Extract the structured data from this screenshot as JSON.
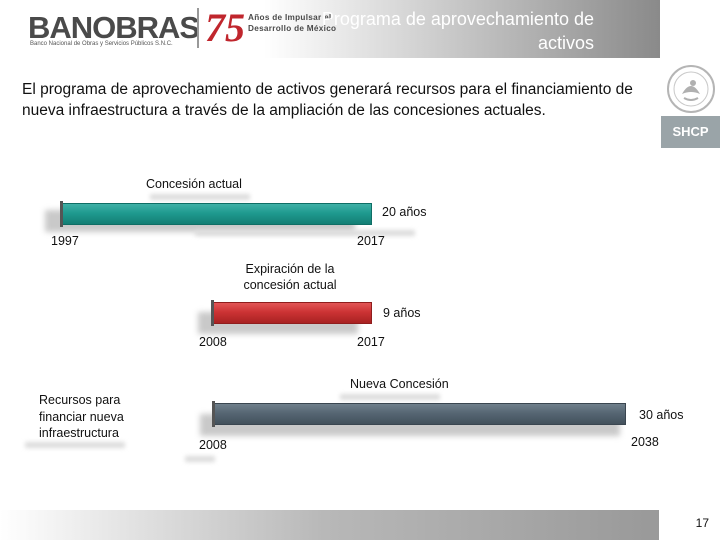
{
  "header": {
    "brand": "BANOBRAS",
    "brand_sub": "Banco Nacional de Obras y Servicios Públicos S.N.C.",
    "anniversary_number": "75",
    "anniversary_text": "Años de Impulsar el Desarrollo de México",
    "title": "Programa de aprovechamiento de activos"
  },
  "right_rail": {
    "agency": "SHCP"
  },
  "intro": "El programa de aprovechamiento de activos generará recursos para el financiamiento de nueva infraestructura a través de la ampliación de las concesiones actuales.",
  "timelines": [
    {
      "label": "Concesión actual",
      "duration": "20 años",
      "start": "1997",
      "end": "2017",
      "color": "#1f9a8f"
    },
    {
      "label": "Expiración de la concesión actual",
      "duration": "9 años",
      "start": "2008",
      "end": "2017",
      "color": "#cc3334"
    },
    {
      "label": "Nueva Concesión",
      "duration": "30 años",
      "start": "2008",
      "end": "2038",
      "color": "#566673"
    }
  ],
  "side_note": "Recursos para financiar nueva infraestructura",
  "footer": {
    "page": "17"
  }
}
